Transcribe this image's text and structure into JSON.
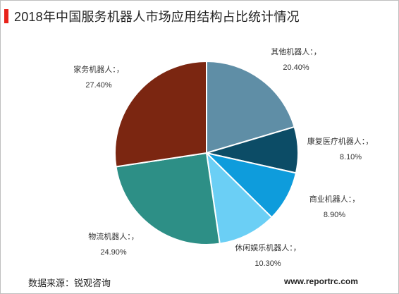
{
  "title": "2018年中国服务机器人市场应用结构占比统计情况",
  "source": "数据来源：锐观咨询",
  "website": "www.reportrc.com",
  "colors": {
    "accent": "#e8221a"
  },
  "chart_data": {
    "type": "pie",
    "title": "2018年中国服务机器人市场应用结构占比统计情况",
    "start": "12 o'clock",
    "direction": "clockwise",
    "slices": [
      {
        "name": "其他机器人：，",
        "value": 20.4,
        "label": "20.40%",
        "color": "#5f8ea6"
      },
      {
        "name": "康复医疗机器人：，",
        "value": 8.1,
        "label": "8.10%",
        "color": "#0c4c66"
      },
      {
        "name": "商业机器人：，",
        "value": 8.9,
        "label": "8.90%",
        "color": "#0e9cdc"
      },
      {
        "name": "休闲娱乐机器人：，",
        "value": 10.3,
        "label": "10.30%",
        "color": "#6bcff5"
      },
      {
        "name": "物流机器人：，",
        "value": 24.9,
        "label": "24.90%",
        "color": "#2d8f86"
      },
      {
        "name": "家务机器人：，",
        "value": 27.4,
        "label": "27.40%",
        "color": "#7b2611"
      }
    ]
  }
}
